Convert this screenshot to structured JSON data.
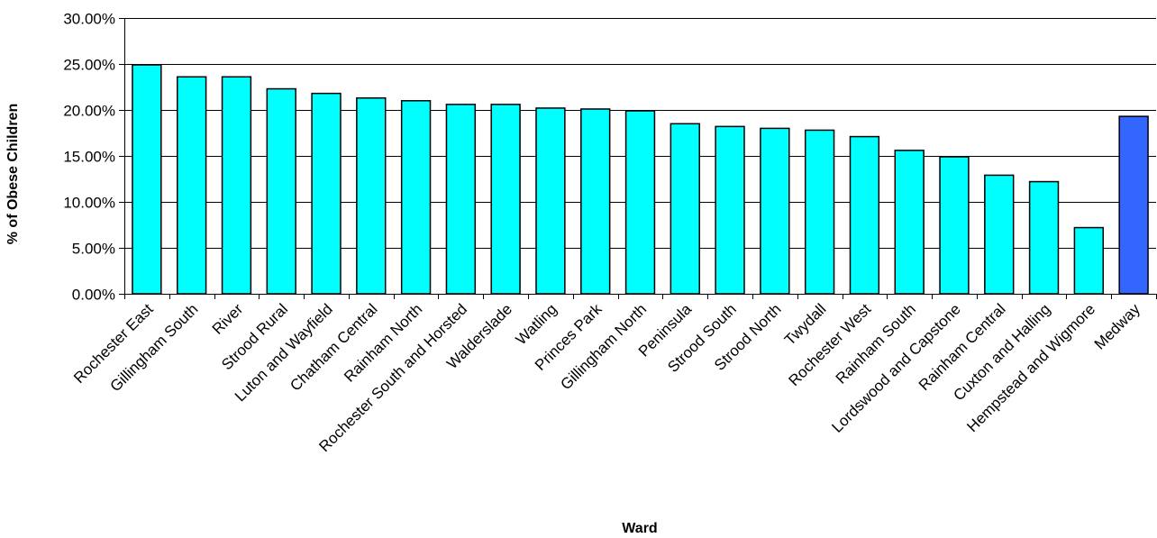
{
  "chart_data": {
    "type": "bar",
    "title": "",
    "xlabel": "Ward",
    "ylabel": "% of Obese Children",
    "ylim": [
      0,
      30
    ],
    "ytick_values": [
      0,
      5,
      10,
      15,
      20,
      25,
      30
    ],
    "ytick_labels": [
      "0.00%",
      "5.00%",
      "10.00%",
      "15.00%",
      "20.00%",
      "25.00%",
      "30.00%"
    ],
    "grid": true,
    "legend": "none",
    "categories": [
      "Rochester East",
      "Gillingham South",
      "River",
      "Strood Rural",
      "Luton and Wayfield",
      "Chatham Central",
      "Rainham North",
      "Rochester South and Horsted",
      "Walderslade",
      "Watling",
      "Princes Park",
      "Gillingham North",
      "Peninsula",
      "Strood South",
      "Strood North",
      "Twydall",
      "Rochester West",
      "Rainham South",
      "Lordswood and Capstone",
      "Rainham Central",
      "Cuxton and Halling",
      "Hempstead and Wigmore",
      "Medway"
    ],
    "values": [
      24.9,
      23.6,
      23.6,
      22.3,
      21.8,
      21.3,
      21.0,
      20.6,
      20.6,
      20.2,
      20.1,
      19.9,
      18.5,
      18.2,
      18.0,
      17.8,
      17.1,
      15.6,
      14.9,
      12.9,
      12.2,
      7.2,
      19.3
    ],
    "bar_color": "#00FFFF",
    "highlight_color": "#3366FF",
    "highlight_category": "Medway"
  }
}
